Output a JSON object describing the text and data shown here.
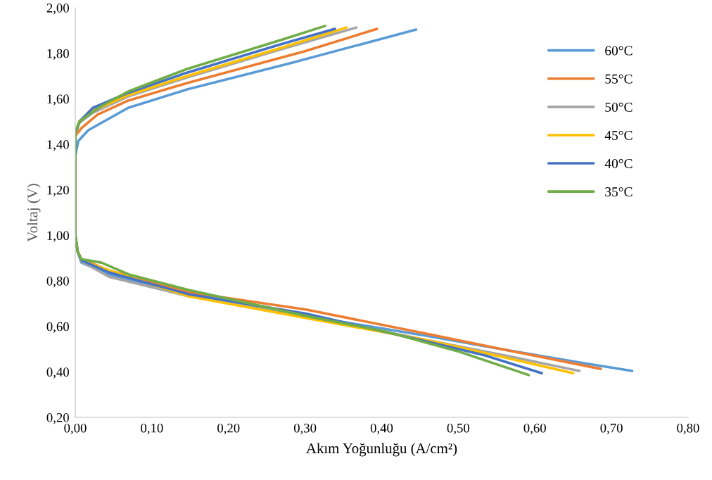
{
  "chart_data": {
    "type": "line",
    "xlabel": "Akım Yoğunluğu (A/cm²)",
    "ylabel": "Voltaj (V)",
    "xlim": [
      0,
      0.8
    ],
    "ylim": [
      0.2,
      2.0
    ],
    "xticks": [
      {
        "value": 0,
        "label": "0,00"
      },
      {
        "value": 0.1,
        "label": "0,10"
      },
      {
        "value": 0.2,
        "label": "0,20"
      },
      {
        "value": 0.3,
        "label": "0,30"
      },
      {
        "value": 0.4,
        "label": "0,40"
      },
      {
        "value": 0.5,
        "label": "0,50"
      },
      {
        "value": 0.6,
        "label": "0,60"
      },
      {
        "value": 0.7,
        "label": "0,70"
      },
      {
        "value": 0.8,
        "label": "0,80"
      }
    ],
    "yticks": [
      {
        "value": 0.2,
        "label": "0,20"
      },
      {
        "value": 0.4,
        "label": "0,40"
      },
      {
        "value": 0.6,
        "label": "0,60"
      },
      {
        "value": 0.8,
        "label": "0,80"
      },
      {
        "value": 1.0,
        "label": "1,00"
      },
      {
        "value": 1.2,
        "label": "1,20"
      },
      {
        "value": 1.4,
        "label": "1,40"
      },
      {
        "value": 1.6,
        "label": "1,60"
      },
      {
        "value": 1.8,
        "label": "1,80"
      },
      {
        "value": 2.0,
        "label": "2,00"
      }
    ],
    "grid": false,
    "legend": "right",
    "marker": "none",
    "line_style": "solid",
    "series": [
      {
        "name": "60°C",
        "color": "#5b9bd5",
        "x": [
          0.445,
          0.28,
          0.146,
          0.069,
          0.017,
          0.004,
          0,
          0,
          0.003,
          0.008,
          0.044,
          0.148,
          0.302,
          0.458,
          0.561,
          0.664,
          0.727
        ],
        "values": [
          1.904,
          1.756,
          1.641,
          1.56,
          1.462,
          1.415,
          1.35,
          1.0,
          0.93,
          0.88,
          0.828,
          0.741,
          0.645,
          0.559,
          0.497,
          0.438,
          0.404
        ]
      },
      {
        "name": "55°C",
        "color": "#ed7d31",
        "x": [
          0.394,
          0.299,
          0.146,
          0.069,
          0.029,
          0.008,
          0,
          0,
          0.003,
          0.008,
          0.044,
          0.148,
          0.302,
          0.458,
          0.561,
          0.686
        ],
        "values": [
          1.907,
          1.808,
          1.669,
          1.592,
          1.53,
          1.471,
          1.437,
          1.0,
          0.93,
          0.895,
          0.846,
          0.75,
          0.673,
          0.568,
          0.497,
          0.413
        ]
      },
      {
        "name": "50°C",
        "color": "#a5a5a5",
        "x": [
          0.367,
          0.268,
          0.146,
          0.069,
          0.023,
          0.005,
          0,
          0,
          0.003,
          0.008,
          0.044,
          0.148,
          0.302,
          0.458,
          0.561,
          0.658
        ],
        "values": [
          1.913,
          1.817,
          1.694,
          1.61,
          1.539,
          1.493,
          1.44,
          1.0,
          0.93,
          0.885,
          0.818,
          0.732,
          0.645,
          0.54,
          0.472,
          0.404
        ]
      },
      {
        "name": "45°C",
        "color": "#ffc000",
        "x": [
          0.354,
          0.268,
          0.146,
          0.069,
          0.023,
          0.005,
          0,
          0,
          0.003,
          0.008,
          0.044,
          0.148,
          0.302,
          0.458,
          0.561,
          0.65
        ],
        "values": [
          1.913,
          1.823,
          1.7,
          1.616,
          1.548,
          1.499,
          1.44,
          1.0,
          0.93,
          0.89,
          0.846,
          0.732,
          0.636,
          0.54,
          0.463,
          0.394
        ]
      },
      {
        "name": "40°C",
        "color": "#4472c4",
        "x": [
          0.339,
          0.268,
          0.146,
          0.069,
          0.023,
          0.006,
          0,
          0,
          0.003,
          0.008,
          0.044,
          0.148,
          0.302,
          0.458,
          0.535,
          0.609
        ],
        "values": [
          1.907,
          1.839,
          1.715,
          1.626,
          1.56,
          1.502,
          1.45,
          1.0,
          0.93,
          0.89,
          0.837,
          0.741,
          0.655,
          0.534,
          0.472,
          0.394
        ]
      },
      {
        "name": "35°C",
        "color": "#70ad47",
        "x": [
          0.326,
          0.268,
          0.146,
          0.069,
          0.032,
          0.006,
          0,
          0,
          0.003,
          0.008,
          0.034,
          0.07,
          0.148,
          0.302,
          0.405,
          0.499,
          0.592
        ],
        "values": [
          1.92,
          1.858,
          1.731,
          1.632,
          1.564,
          1.502,
          1.456,
          1.0,
          0.93,
          0.895,
          0.88,
          0.828,
          0.76,
          0.645,
          0.577,
          0.491,
          0.386
        ]
      }
    ]
  }
}
